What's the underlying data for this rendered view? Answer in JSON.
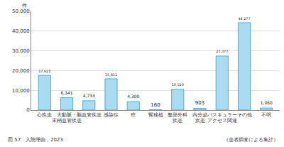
{
  "chart_data": {
    "type": "bar",
    "title": "図 57　入院理由，2023",
    "ylabel": "件",
    "annotations": [
      "（患者調査による集計）"
    ],
    "categories": [
      "心疾患",
      "大動脈・\n末梢血管疾患",
      "脳血管疾患",
      "感染症",
      "癌",
      "腎移植",
      "整形外科\n疾患",
      "内分泌\n疾患",
      "バスキュラー\nアクセス関連",
      "その他",
      "不明"
    ],
    "values": [
      17621,
      6341,
      4733,
      15851,
      4300,
      160,
      10520,
      903,
      27377,
      44277,
      1060
    ],
    "value_labels": [
      "17,621",
      "6,341",
      "4,733",
      "15,851",
      "4,300",
      "160",
      "10,520",
      "903",
      "27,377",
      "44,277",
      "1,060"
    ],
    "color": "#a9dcf0",
    "ylim": [
      0,
      50000
    ],
    "yticks": [
      0,
      {
        "value": 10000,
        "label": "10,000"
      },
      {
        "value": 20000,
        "label": "20,000"
      },
      {
        "value": 30000,
        "label": "30,000"
      },
      {
        "value": 40000,
        "label": "40,000"
      },
      {
        "value": 50000,
        "label": "50,000"
      }
    ],
    "grid": true,
    "data_labels": true
  }
}
